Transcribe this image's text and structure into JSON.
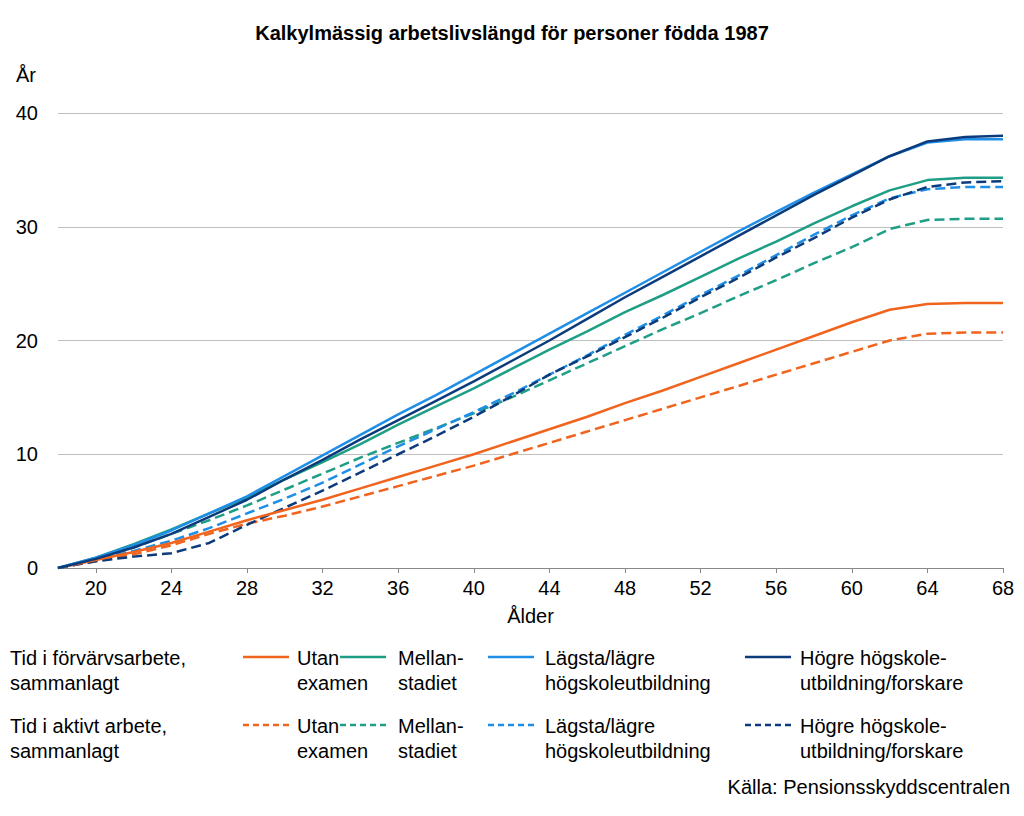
{
  "chart_data": {
    "type": "line",
    "title": "Kalkylmässig arbetslivslängd för personer födda 1987",
    "xlabel": "Ålder",
    "ylabel": "År",
    "source": "Källa: Pensionsskyddscentralen",
    "x": [
      18,
      20,
      22,
      24,
      26,
      28,
      30,
      32,
      34,
      36,
      38,
      40,
      42,
      44,
      46,
      48,
      50,
      52,
      54,
      56,
      58,
      60,
      62,
      64,
      66,
      68
    ],
    "xlim": [
      18,
      68
    ],
    "xticks": [
      20,
      24,
      28,
      32,
      36,
      40,
      44,
      48,
      52,
      56,
      60,
      64,
      68
    ],
    "ylim": [
      0,
      40
    ],
    "yticks": [
      0,
      10,
      20,
      30,
      40
    ],
    "grid": true,
    "legend": "bottom",
    "legend_rows": [
      {
        "label": "Tid i förvärvsarbete,\nsammanlagt",
        "line_style": "solid"
      },
      {
        "label": "Tid i aktivt arbete,\nsammanlagt",
        "line_style": "dashed"
      }
    ],
    "series": [
      {
        "name": "Utan\nexamen",
        "color": "#f0641e",
        "line_style": "solid",
        "values": [
          0,
          0.7,
          1.4,
          2.2,
          3.2,
          4.2,
          5.1,
          6.0,
          7.0,
          8.0,
          9.0,
          10.0,
          11.1,
          12.2,
          13.3,
          14.5,
          15.6,
          16.8,
          18.0,
          19.2,
          20.4,
          21.6,
          22.7,
          23.2,
          23.3,
          23.3
        ]
      },
      {
        "name": "Mellan-\nstadiet",
        "color": "#1f9e86",
        "line_style": "solid",
        "values": [
          0,
          0.9,
          2.1,
          3.4,
          4.8,
          6.2,
          7.8,
          9.3,
          10.9,
          12.6,
          14.2,
          15.8,
          17.5,
          19.2,
          20.8,
          22.5,
          24.0,
          25.6,
          27.2,
          28.7,
          30.3,
          31.8,
          33.2,
          34.1,
          34.3,
          34.3
        ]
      },
      {
        "name": "Lägsta/lägre\nhögskoleutbildning",
        "color": "#1f8ee6",
        "line_style": "solid",
        "values": [
          0,
          0.9,
          2.0,
          3.3,
          4.8,
          6.3,
          8.1,
          9.9,
          11.7,
          13.5,
          15.2,
          17.0,
          18.8,
          20.6,
          22.4,
          24.2,
          26.0,
          27.8,
          29.6,
          31.3,
          33.0,
          34.6,
          36.2,
          37.4,
          37.7,
          37.7
        ]
      },
      {
        "name": "Högre högskole-\nutbildning/forskare",
        "color": "#0c3b7c",
        "line_style": "solid",
        "values": [
          0,
          0.8,
          1.8,
          3.0,
          4.5,
          6.0,
          7.8,
          9.5,
          11.3,
          13.0,
          14.7,
          16.4,
          18.2,
          20.0,
          21.9,
          23.8,
          25.6,
          27.4,
          29.2,
          31.0,
          32.8,
          34.5,
          36.2,
          37.5,
          37.9,
          38.0
        ]
      },
      {
        "name": "Utan\nexamen",
        "color": "#f0641e",
        "line_style": "dashed",
        "values": [
          0,
          0.6,
          1.2,
          2.0,
          3.0,
          3.9,
          4.6,
          5.4,
          6.3,
          7.2,
          8.1,
          9.0,
          10.0,
          11.0,
          12.0,
          13.0,
          14.0,
          15.0,
          16.0,
          17.0,
          18.0,
          19.0,
          20.0,
          20.6,
          20.7,
          20.7
        ]
      },
      {
        "name": "Mellan-\nstadiet",
        "color": "#1f9e86",
        "line_style": "dashed",
        "values": [
          0,
          0.8,
          1.8,
          3.0,
          4.2,
          5.5,
          6.9,
          8.3,
          9.7,
          11.0,
          12.3,
          13.6,
          15.0,
          16.5,
          18.0,
          19.5,
          21.0,
          22.4,
          23.9,
          25.3,
          26.8,
          28.2,
          29.8,
          30.6,
          30.7,
          30.7
        ]
      },
      {
        "name": "Lägsta/lägre\nhögskoleutbildning",
        "color": "#1f8ee6",
        "line_style": "dashed",
        "values": [
          0,
          0.7,
          1.5,
          2.4,
          3.5,
          4.8,
          6.1,
          7.5,
          9.1,
          10.7,
          12.2,
          13.7,
          15.3,
          17.0,
          18.7,
          20.5,
          22.2,
          24.0,
          25.7,
          27.5,
          29.3,
          31.0,
          32.5,
          33.3,
          33.5,
          33.5
        ]
      },
      {
        "name": "Högre högskole-\nutbildning/forskare",
        "color": "#0c3b7c",
        "line_style": "dashed",
        "values": [
          0,
          0.6,
          1.0,
          1.3,
          2.2,
          3.8,
          5.3,
          6.8,
          8.4,
          10.0,
          11.6,
          13.3,
          15.1,
          17.0,
          18.6,
          20.3,
          22.0,
          23.8,
          25.5,
          27.3,
          29.0,
          30.8,
          32.4,
          33.5,
          33.9,
          34.0
        ]
      }
    ]
  }
}
